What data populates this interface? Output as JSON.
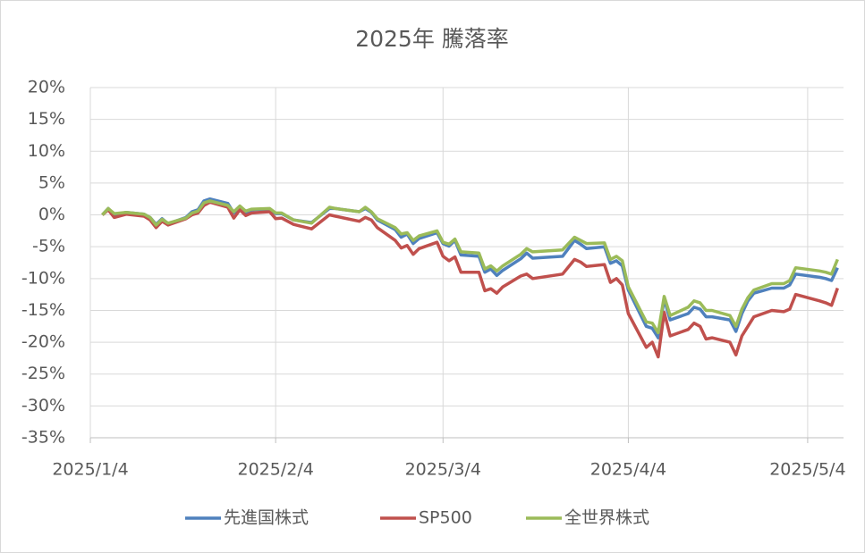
{
  "chart_data": {
    "type": "line",
    "title": "2025年 騰落率",
    "x": [
      "2025/1/6",
      "2025/1/7",
      "2025/1/8",
      "2025/1/10",
      "2025/1/13",
      "2025/1/14",
      "2025/1/15",
      "2025/1/16",
      "2025/1/17",
      "2025/1/20",
      "2025/1/21",
      "2025/1/22",
      "2025/1/23",
      "2025/1/24",
      "2025/1/27",
      "2025/1/28",
      "2025/1/29",
      "2025/1/30",
      "2025/1/31",
      "2025/2/3",
      "2025/2/4",
      "2025/2/5",
      "2025/2/7",
      "2025/2/10",
      "2025/2/13",
      "2025/2/14",
      "2025/2/18",
      "2025/2/19",
      "2025/2/20",
      "2025/2/21",
      "2025/2/24",
      "2025/2/25",
      "2025/2/26",
      "2025/2/27",
      "2025/2/28",
      "2025/3/3",
      "2025/3/4",
      "2025/3/5",
      "2025/3/6",
      "2025/3/7",
      "2025/3/10",
      "2025/3/11",
      "2025/3/12",
      "2025/3/13",
      "2025/3/14",
      "2025/3/17",
      "2025/3/18",
      "2025/3/19",
      "2025/3/24",
      "2025/3/26",
      "2025/3/27",
      "2025/3/28",
      "2025/3/31",
      "2025/4/1",
      "2025/4/2",
      "2025/4/3",
      "2025/4/4",
      "2025/4/7",
      "2025/4/8",
      "2025/4/9",
      "2025/4/10",
      "2025/4/11",
      "2025/4/14",
      "2025/4/15",
      "2025/4/16",
      "2025/4/17",
      "2025/4/18",
      "2025/4/21",
      "2025/4/22",
      "2025/4/23",
      "2025/4/24",
      "2025/4/25",
      "2025/4/28",
      "2025/4/30",
      "2025/5/1",
      "2025/5/2",
      "2025/5/6",
      "2025/5/7",
      "2025/5/8",
      "2025/5/9"
    ],
    "series": [
      {
        "name": "先進国株式",
        "color": "#4f81bd",
        "values": [
          0,
          1.0,
          0.0,
          0.4,
          0.1,
          -0.4,
          -1.5,
          -0.6,
          -1.4,
          -0.4,
          0.5,
          0.8,
          2.2,
          2.5,
          1.8,
          0.3,
          1.2,
          0.3,
          0.8,
          0.9,
          0.2,
          0.2,
          -0.8,
          -1.2,
          1.0,
          1.0,
          0.5,
          1.0,
          0.4,
          -0.8,
          -2.3,
          -3.5,
          -3.0,
          -4.5,
          -3.7,
          -2.8,
          -4.5,
          -4.9,
          -4.0,
          -6.3,
          -6.5,
          -9.0,
          -8.5,
          -9.5,
          -8.7,
          -6.9,
          -6.0,
          -6.8,
          -6.5,
          -4.0,
          -4.6,
          -5.3,
          -5.0,
          -7.6,
          -7.2,
          -8.0,
          -11.8,
          -17.5,
          -17.8,
          -19.3,
          -13.2,
          -16.5,
          -15.5,
          -14.5,
          -14.8,
          -16.0,
          -16.0,
          -16.5,
          -18.3,
          -15.5,
          -13.5,
          -12.3,
          -11.5,
          -11.5,
          -11.0,
          -9.3,
          -9.8,
          -10.0,
          -10.3,
          -8.3
        ]
      },
      {
        "name": "SP500",
        "color": "#c0504d",
        "values": [
          0,
          0.8,
          -0.4,
          0.1,
          -0.2,
          -0.8,
          -2.0,
          -1.0,
          -1.6,
          -0.6,
          0.0,
          0.3,
          1.5,
          2.0,
          1.2,
          -0.5,
          0.8,
          -0.1,
          0.3,
          0.5,
          -0.6,
          -0.5,
          -1.5,
          -2.2,
          0.0,
          -0.2,
          -1.0,
          -0.4,
          -0.8,
          -2.0,
          -4.0,
          -5.2,
          -4.8,
          -6.2,
          -5.3,
          -4.3,
          -6.5,
          -7.2,
          -6.6,
          -9.0,
          -9.0,
          -11.9,
          -11.6,
          -12.3,
          -11.3,
          -9.6,
          -9.3,
          -10.0,
          -9.3,
          -7.0,
          -7.4,
          -8.1,
          -7.8,
          -10.6,
          -10.0,
          -11.0,
          -15.5,
          -20.8,
          -20.0,
          -22.3,
          -15.3,
          -19.0,
          -18.0,
          -17.0,
          -17.5,
          -19.5,
          -19.3,
          -20.0,
          -22.0,
          -19.0,
          -17.5,
          -16.0,
          -15.0,
          -15.2,
          -14.8,
          -12.5,
          -13.5,
          -13.8,
          -14.2,
          -11.5
        ]
      },
      {
        "name": "全世界株式",
        "color": "#9bbb59",
        "values": [
          0,
          1.0,
          0.2,
          0.4,
          0.1,
          -0.4,
          -1.6,
          -0.7,
          -1.3,
          -0.5,
          0.3,
          0.6,
          1.9,
          2.2,
          1.5,
          0.5,
          1.4,
          0.6,
          0.9,
          1.0,
          0.3,
          0.3,
          -0.8,
          -1.3,
          1.2,
          1.0,
          0.5,
          1.2,
          0.5,
          -0.6,
          -2.0,
          -3.0,
          -2.8,
          -4.0,
          -3.3,
          -2.5,
          -4.3,
          -4.6,
          -3.8,
          -5.8,
          -6.0,
          -8.5,
          -8.0,
          -8.8,
          -8.0,
          -6.2,
          -5.3,
          -5.8,
          -5.5,
          -3.5,
          -4.0,
          -4.5,
          -4.4,
          -7.0,
          -6.5,
          -7.2,
          -11.3,
          -16.8,
          -17.0,
          -18.5,
          -12.8,
          -15.8,
          -14.5,
          -13.5,
          -13.8,
          -15.0,
          -15.0,
          -15.8,
          -17.5,
          -14.8,
          -13.0,
          -11.8,
          -10.8,
          -10.8,
          -10.3,
          -8.3,
          -8.8,
          -9.0,
          -9.3,
          -7.0
        ]
      }
    ],
    "xlim": [
      "2025/1/4",
      "2025/5/10"
    ],
    "xticks": [
      "2025/1/4",
      "2025/2/4",
      "2025/3/4",
      "2025/4/4",
      "2025/5/4"
    ],
    "ylim": [
      -35,
      20
    ],
    "yticks": [
      {
        "value": 20,
        "label": "20%"
      },
      {
        "value": 15,
        "label": "15%"
      },
      {
        "value": 10,
        "label": "10%"
      },
      {
        "value": 5,
        "label": "5%"
      },
      {
        "value": 0,
        "label": "0%"
      },
      {
        "value": -5,
        "label": "-5%"
      },
      {
        "value": -10,
        "label": "-10%"
      },
      {
        "value": -15,
        "label": "-15%"
      },
      {
        "value": -20,
        "label": "-20%"
      },
      {
        "value": -25,
        "label": "-25%"
      },
      {
        "value": -30,
        "label": "-30%"
      },
      {
        "value": -35,
        "label": "-35%"
      }
    ],
    "grid": true,
    "legend": "bottom"
  }
}
